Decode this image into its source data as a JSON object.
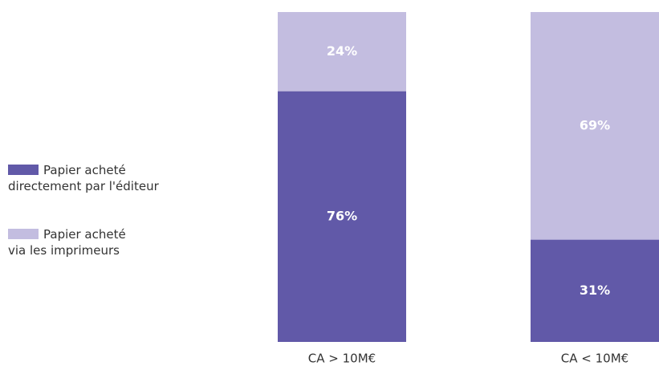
{
  "chart_data": {
    "type": "stacked_bar",
    "categories": [
      "CA > 10M€",
      "CA < 10M€"
    ],
    "series": [
      {
        "name": "Papier acheté\ndirectement par l'éditeur",
        "color": "#6159a8",
        "values": [
          76,
          31
        ],
        "value_labels": [
          "76%",
          "31%"
        ]
      },
      {
        "name": "Papier acheté\nvia les imprimeurs",
        "color": "#c3bde0",
        "values": [
          24,
          69
        ],
        "value_labels": [
          "24%",
          "69%"
        ]
      }
    ]
  }
}
